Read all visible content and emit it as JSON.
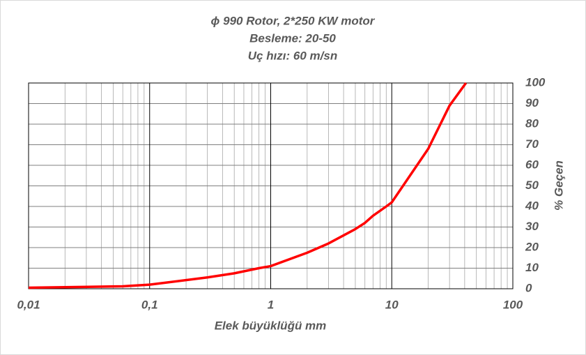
{
  "chart_data": {
    "type": "line",
    "title": [
      "ϕ 990 Rotor, 2*250 KW motor",
      "Besleme: 20-50",
      "Uç hızı: 60 m/sn"
    ],
    "x_label": "Elek büyüklüğü mm",
    "y_label": "% Geçen",
    "x_scale": "log",
    "minor_grid": true,
    "grid": true,
    "y_axis_side": "right",
    "x": [
      0.01,
      0.06,
      0.1,
      0.3,
      0.5,
      0.8,
      1,
      2,
      3,
      5,
      6,
      7,
      9,
      10,
      20,
      30,
      41
    ],
    "series": [
      {
        "name": "% Geçen",
        "color": "#ff0000",
        "values": [
          0.5,
          1.2,
          2,
          5.5,
          7.5,
          10,
          11,
          17.5,
          22,
          29,
          32,
          35.5,
          40,
          42,
          68,
          89,
          100
        ]
      }
    ],
    "xlim": [
      0.01,
      100
    ],
    "xticks": [
      {
        "value": 0.01,
        "label": "0,01"
      },
      {
        "value": 0.1,
        "label": "0,1"
      },
      1,
      10,
      100
    ],
    "ylim": [
      0,
      100
    ],
    "yticks": [
      0,
      10,
      20,
      30,
      40,
      50,
      60,
      70,
      80,
      90,
      100
    ]
  }
}
